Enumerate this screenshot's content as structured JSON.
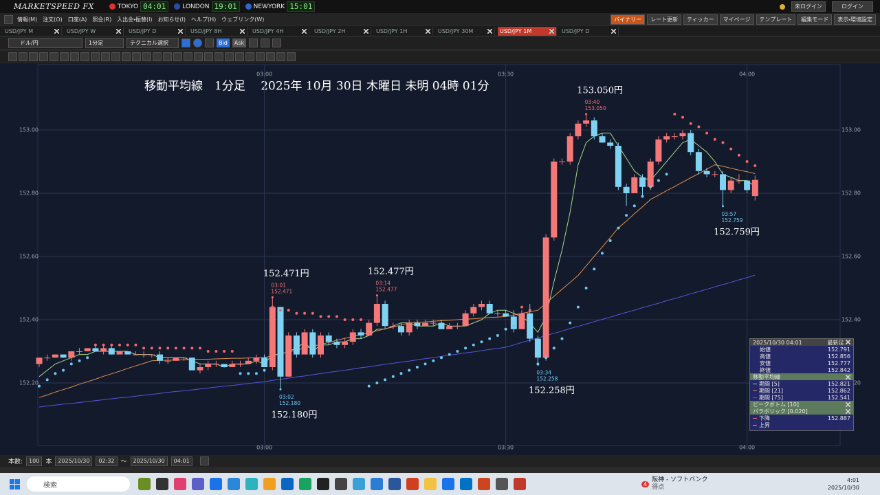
{
  "chart_data": {
    "type": "candlestick",
    "title": "移動平均線　1分足　 2025年 10月 30日 木曜日 未明 04時 01分",
    "categories": [
      null,
      null,
      null,
      null,
      null,
      null,
      null,
      null,
      null,
      null,
      null,
      null,
      null,
      null,
      null,
      null,
      null,
      null,
      null,
      null,
      null,
      null,
      null,
      null,
      null,
      null,
      null,
      null,
      "03:00",
      null,
      null,
      null,
      null,
      null,
      null,
      null,
      null,
      null,
      null,
      null,
      null,
      null,
      null,
      null,
      null,
      null,
      null,
      null,
      null,
      null,
      null,
      null,
      null,
      null,
      null,
      null,
      null,
      null,
      "03:30",
      null,
      null,
      null,
      null,
      null,
      null,
      null,
      null,
      null,
      null,
      null,
      null,
      null,
      null,
      null,
      null,
      null,
      null,
      null,
      null,
      null,
      null,
      null,
      null,
      null,
      null,
      null,
      null,
      null,
      "04:00",
      null
    ],
    "open": [
      152.26,
      152.28,
      152.28,
      152.29,
      152.28,
      152.3,
      152.3,
      152.31,
      152.3,
      152.31,
      152.29,
      152.3,
      152.29,
      152.29,
      152.29,
      152.29,
      152.27,
      152.27,
      152.28,
      152.28,
      152.24,
      152.25,
      152.26,
      152.26,
      152.25,
      152.26,
      152.26,
      152.27,
      152.28,
      152.25,
      152.44,
      152.22,
      152.35,
      152.29,
      152.36,
      152.29,
      152.35,
      152.33,
      152.32,
      152.33,
      152.36,
      152.35,
      152.39,
      152.45,
      152.38,
      152.38,
      152.36,
      152.39,
      152.38,
      152.39,
      152.39,
      152.37,
      152.38,
      152.38,
      152.42,
      152.44,
      152.45,
      152.42,
      152.42,
      152.41,
      152.37,
      152.42,
      152.34,
      152.28,
      152.66,
      152.9,
      152.9,
      152.98,
      153.02,
      153.03,
      152.98,
      152.96,
      152.95,
      152.82,
      152.8,
      152.85,
      152.82,
      152.9,
      152.97,
      152.98,
      152.98,
      152.99,
      152.93,
      152.87,
      152.86,
      152.86,
      152.81,
      152.84,
      152.84,
      152.791
    ],
    "high": [
      152.28,
      152.29,
      152.29,
      152.29,
      152.3,
      152.31,
      152.31,
      152.32,
      152.32,
      152.32,
      152.3,
      152.3,
      152.3,
      152.3,
      152.29,
      152.3,
      152.28,
      152.28,
      152.28,
      152.28,
      152.26,
      152.27,
      152.27,
      152.26,
      152.27,
      152.27,
      152.28,
      152.29,
      152.29,
      152.471,
      152.44,
      152.36,
      152.36,
      152.37,
      152.37,
      152.36,
      152.36,
      152.34,
      152.34,
      152.37,
      152.37,
      152.4,
      152.477,
      152.46,
      152.39,
      152.39,
      152.4,
      152.4,
      152.4,
      152.4,
      152.4,
      152.39,
      152.39,
      152.43,
      152.45,
      152.46,
      152.46,
      152.43,
      152.43,
      152.43,
      152.43,
      152.45,
      152.35,
      152.67,
      152.91,
      152.91,
      152.99,
      153.03,
      153.05,
      153.04,
      152.99,
      152.97,
      152.96,
      152.83,
      152.86,
      152.86,
      152.91,
      152.98,
      152.99,
      152.99,
      153.0,
      153.0,
      152.94,
      152.88,
      152.87,
      152.87,
      152.85,
      152.86,
      152.84,
      152.856
    ],
    "low": [
      152.25,
      152.27,
      152.28,
      152.28,
      152.27,
      152.29,
      152.3,
      152.3,
      152.29,
      152.29,
      152.29,
      152.29,
      152.29,
      152.28,
      152.28,
      152.26,
      152.26,
      152.27,
      152.27,
      152.24,
      152.23,
      152.24,
      152.25,
      152.25,
      152.25,
      152.25,
      152.26,
      152.26,
      152.25,
      152.24,
      152.18,
      152.22,
      152.28,
      152.29,
      152.28,
      152.28,
      152.32,
      152.31,
      152.31,
      152.32,
      152.34,
      152.35,
      152.38,
      152.37,
      152.37,
      152.35,
      152.35,
      152.37,
      152.38,
      152.38,
      152.37,
      152.37,
      152.37,
      152.38,
      152.41,
      152.43,
      152.42,
      152.41,
      152.41,
      152.36,
      152.37,
      152.33,
      152.258,
      152.27,
      152.65,
      152.89,
      152.89,
      152.97,
      153.01,
      152.97,
      152.96,
      152.94,
      152.81,
      152.76,
      152.8,
      152.79,
      152.81,
      152.89,
      152.96,
      152.97,
      152.97,
      152.92,
      152.86,
      152.85,
      152.85,
      152.759,
      152.8,
      152.83,
      152.8,
      152.777
    ],
    "close": [
      152.28,
      152.28,
      152.29,
      152.28,
      152.3,
      152.3,
      152.31,
      152.3,
      152.31,
      152.29,
      152.3,
      152.29,
      152.29,
      152.29,
      152.29,
      152.27,
      152.27,
      152.28,
      152.28,
      152.24,
      152.25,
      152.26,
      152.26,
      152.25,
      152.26,
      152.26,
      152.27,
      152.28,
      152.25,
      152.44,
      152.22,
      152.35,
      152.29,
      152.36,
      152.29,
      152.35,
      152.33,
      152.32,
      152.33,
      152.36,
      152.35,
      152.39,
      152.45,
      152.38,
      152.38,
      152.36,
      152.39,
      152.38,
      152.39,
      152.39,
      152.37,
      152.38,
      152.38,
      152.42,
      152.44,
      152.45,
      152.42,
      152.42,
      152.41,
      152.37,
      152.42,
      152.34,
      152.28,
      152.66,
      152.9,
      152.9,
      152.98,
      153.02,
      153.03,
      152.98,
      152.96,
      152.95,
      152.82,
      152.8,
      152.85,
      152.82,
      152.9,
      152.97,
      152.98,
      152.98,
      152.99,
      152.93,
      152.87,
      152.86,
      152.86,
      152.81,
      152.84,
      152.84,
      152.81,
      152.842
    ],
    "up_color": "#f47878",
    "down_color": "#7fd2f2",
    "series": [
      {
        "name": "期間 [5]",
        "color": "#a6d88c",
        "style": "line",
        "values": [
          152.22,
          152.24,
          152.26,
          152.27,
          152.28,
          152.29,
          152.29,
          152.3,
          152.3,
          152.3,
          152.3,
          152.3,
          152.29,
          152.29,
          152.29,
          152.28,
          152.28,
          152.28,
          152.28,
          152.27,
          152.26,
          152.26,
          152.26,
          152.25,
          152.26,
          152.26,
          152.26,
          152.27,
          152.26,
          152.29,
          152.29,
          152.3,
          152.31,
          152.33,
          152.3,
          152.32,
          152.32,
          152.33,
          152.33,
          152.34,
          152.34,
          152.35,
          152.37,
          152.37,
          152.38,
          152.39,
          152.39,
          152.38,
          152.38,
          152.38,
          152.39,
          152.38,
          152.38,
          152.38,
          152.39,
          152.4,
          152.42,
          152.43,
          152.43,
          152.42,
          152.41,
          152.39,
          152.36,
          152.41,
          152.52,
          152.62,
          152.74,
          152.89,
          152.96,
          152.98,
          152.99,
          152.99,
          152.95,
          152.91,
          152.87,
          152.85,
          152.84,
          152.87,
          152.9,
          152.93,
          152.96,
          152.97,
          152.95,
          152.93,
          152.9,
          152.86,
          152.85,
          152.84,
          152.84,
          152.821
        ]
      },
      {
        "name": "期間 [21]",
        "color": "#e0904c",
        "style": "line",
        "values": [
          152.154,
          152.162,
          152.171,
          152.179,
          152.187,
          152.196,
          152.204,
          152.212,
          152.221,
          152.229,
          152.237,
          152.246,
          152.254,
          152.262,
          152.27,
          152.271,
          152.272,
          152.272,
          152.273,
          152.274,
          152.275,
          152.275,
          152.276,
          152.277,
          152.278,
          152.278,
          152.279,
          152.28,
          152.28,
          152.286,
          152.292,
          152.298,
          152.304,
          152.31,
          152.316,
          152.322,
          152.328,
          152.335,
          152.341,
          152.347,
          152.353,
          152.359,
          152.365,
          152.371,
          152.377,
          152.383,
          152.39,
          152.392,
          152.393,
          152.395,
          152.397,
          152.398,
          152.4,
          152.402,
          152.403,
          152.405,
          152.407,
          152.408,
          152.41,
          152.415,
          152.42,
          152.425,
          152.43,
          152.452,
          152.474,
          152.496,
          152.518,
          152.54,
          152.57,
          152.6,
          152.63,
          152.66,
          152.69,
          152.712,
          152.735,
          152.757,
          152.78,
          152.794,
          152.808,
          152.821,
          152.835,
          152.849,
          152.862,
          152.876,
          152.89,
          152.885,
          152.879,
          152.873,
          152.868,
          152.862
        ]
      },
      {
        "name": "期間 [75]",
        "color": "#5458d8",
        "style": "line",
        "values": [
          152.124,
          152.127,
          152.13,
          152.133,
          152.135,
          152.138,
          152.141,
          152.144,
          152.147,
          152.15,
          152.153,
          152.155,
          152.158,
          152.161,
          152.164,
          152.167,
          152.17,
          152.173,
          152.175,
          152.178,
          152.181,
          152.184,
          152.187,
          152.19,
          152.192,
          152.195,
          152.198,
          152.201,
          152.204,
          152.208,
          152.211,
          152.215,
          152.219,
          152.222,
          152.226,
          152.23,
          152.233,
          152.237,
          152.24,
          152.244,
          152.248,
          152.251,
          152.255,
          152.259,
          152.262,
          152.266,
          152.269,
          152.273,
          152.277,
          152.28,
          152.284,
          152.288,
          152.291,
          152.295,
          152.298,
          152.302,
          152.306,
          152.309,
          152.313,
          152.32,
          152.328,
          152.335,
          152.342,
          152.35,
          152.357,
          152.364,
          152.372,
          152.379,
          152.386,
          152.394,
          152.401,
          152.408,
          152.416,
          152.423,
          152.43,
          152.438,
          152.445,
          152.452,
          152.46,
          152.467,
          152.474,
          152.482,
          152.489,
          152.496,
          152.504,
          152.511,
          152.518,
          152.526,
          152.533,
          152.541
        ]
      },
      {
        "name": "下降",
        "color": "#f26868",
        "style": "dots",
        "values": [
          null,
          null,
          null,
          null,
          null,
          null,
          null,
          152.32,
          152.32,
          152.32,
          152.32,
          152.32,
          152.32,
          152.31,
          152.31,
          152.31,
          152.31,
          152.31,
          152.31,
          152.31,
          152.31,
          152.3,
          152.3,
          152.3,
          152.3,
          null,
          null,
          null,
          null,
          152.44,
          152.43,
          152.43,
          152.42,
          152.42,
          152.42,
          152.41,
          152.41,
          152.41,
          152.4,
          152.4,
          152.4,
          null,
          null,
          null,
          null,
          null,
          null,
          null,
          null,
          null,
          null,
          null,
          null,
          null,
          null,
          null,
          null,
          null,
          null,
          null,
          152.44,
          152.43,
          null,
          null,
          null,
          null,
          null,
          null,
          null,
          null,
          null,
          null,
          null,
          null,
          null,
          null,
          null,
          null,
          null,
          153.05,
          153.04,
          153.02,
          153.01,
          152.99,
          152.97,
          152.96,
          152.94,
          152.92,
          152.9,
          152.887
        ]
      },
      {
        "name": "上昇",
        "color": "#6ec8f2",
        "style": "dots",
        "values": [
          152.19,
          152.21,
          152.23,
          152.24,
          152.26,
          152.27,
          152.28,
          null,
          null,
          null,
          null,
          null,
          null,
          null,
          null,
          null,
          null,
          null,
          null,
          null,
          null,
          null,
          null,
          null,
          null,
          152.23,
          152.23,
          152.23,
          152.24,
          null,
          null,
          null,
          null,
          null,
          null,
          null,
          null,
          null,
          null,
          null,
          null,
          152.19,
          152.2,
          152.21,
          152.22,
          152.23,
          152.24,
          152.25,
          152.26,
          152.27,
          152.28,
          152.29,
          152.3,
          152.31,
          152.32,
          152.33,
          152.34,
          152.35,
          152.37,
          152.38,
          null,
          null,
          152.26,
          152.28,
          152.31,
          152.34,
          152.39,
          152.44,
          152.5,
          152.56,
          152.61,
          152.65,
          152.69,
          152.73,
          152.76,
          152.79,
          152.82,
          152.84,
          152.86,
          null,
          null,
          null,
          null,
          null,
          null,
          null,
          null,
          null,
          null,
          null
        ]
      }
    ],
    "annotations": [
      {
        "time": "03:01",
        "value": 152.471,
        "value_label": "152.471",
        "label": "152.471円",
        "kind": "high"
      },
      {
        "time": "03:02",
        "value": 152.18,
        "value_label": "152.180",
        "label": "152.180円",
        "kind": "low"
      },
      {
        "time": "03:14",
        "value": 152.477,
        "value_label": "152.477",
        "label": "152.477円",
        "kind": "high"
      },
      {
        "time": "03:34",
        "value": 152.258,
        "value_label": "152.258",
        "label": "152.258円",
        "kind": "low"
      },
      {
        "time": "03:40",
        "value": 153.05,
        "value_label": "153.050",
        "label": "153.050円",
        "kind": "high"
      },
      {
        "time": "03:57",
        "value": 152.759,
        "value_label": "152.759",
        "label": "152.759円",
        "kind": "low"
      }
    ],
    "ylim": [
      152.01,
      153.19
    ],
    "yticks": [
      {
        "value": 153,
        "label": "153.00"
      },
      {
        "value": 152.8,
        "label": "152.80"
      },
      {
        "value": 152.6,
        "label": "152.60"
      },
      {
        "value": 152.4,
        "label": "152.40"
      },
      {
        "value": 152.2,
        "label": "152.20"
      }
    ],
    "grid": true
  },
  "info_panel": {
    "datetime": "2025/10/30 04:01",
    "latest": "最新足",
    "ohlc": [
      {
        "label": "始値",
        "value": 152.791
      },
      {
        "label": "高値",
        "value": 152.856
      },
      {
        "label": "安値",
        "value": 152.777
      },
      {
        "label": "終値",
        "value": 152.842
      }
    ],
    "groups": [
      "移動平均線",
      "ピークボトム [10]",
      "パラボリック [0.020]"
    ],
    "ma_values": [
      152.821,
      152.862,
      152.541
    ],
    "sar_value": 152.887
  },
  "ui": {
    "logo": "MARKETSPEED FX",
    "clocks": [
      {
        "city": "TOKYO",
        "time": "04:01"
      },
      {
        "city": "LONDON",
        "time": "19:01"
      },
      {
        "city": "NEWYORK",
        "time": "15:01"
      }
    ],
    "login_status": "未ログイン",
    "login": "ログイン",
    "menu": [
      "情報(M)",
      "注文(O)",
      "口座(A)",
      "照会(R)",
      "入出金・振替(I)",
      "お知らせ(I)",
      "ヘルプ(H)",
      "ウェブリンク(W)"
    ],
    "buttons": [
      "バイナリー",
      "レート更新",
      "ティッカー",
      "マイページ",
      "テンプレート",
      "編集モード",
      "表示・環境設定"
    ],
    "tabs": [
      "USD/JPY M",
      "USD/JPY W",
      "USD/JPY D",
      "USD/JPY 8H",
      "USD/JPY 4H",
      "USD/JPY 2H",
      "USD/JPY 1H",
      "USD/JPY 30M",
      "USD/JPY 1M",
      "USD/JPY D"
    ],
    "active_tab": 8,
    "pair": "ドル/円",
    "interval": "1分足",
    "technical": "テクニカル選択",
    "bid": "Bid",
    "ask": "Ask",
    "bottom": {
      "count_label": "本数:",
      "count": 100,
      "unit": "本",
      "from_date": "2025/10/30",
      "from_time": "02:32",
      "tilde": "～",
      "to_date": "2025/10/30",
      "to_time": "04:01"
    },
    "taskbar": {
      "search": "検索",
      "news_count": 4,
      "news": "阪神 - ソフトバンク",
      "news_sub": "得点",
      "time": "4:01",
      "date": "2025/10/30"
    }
  }
}
